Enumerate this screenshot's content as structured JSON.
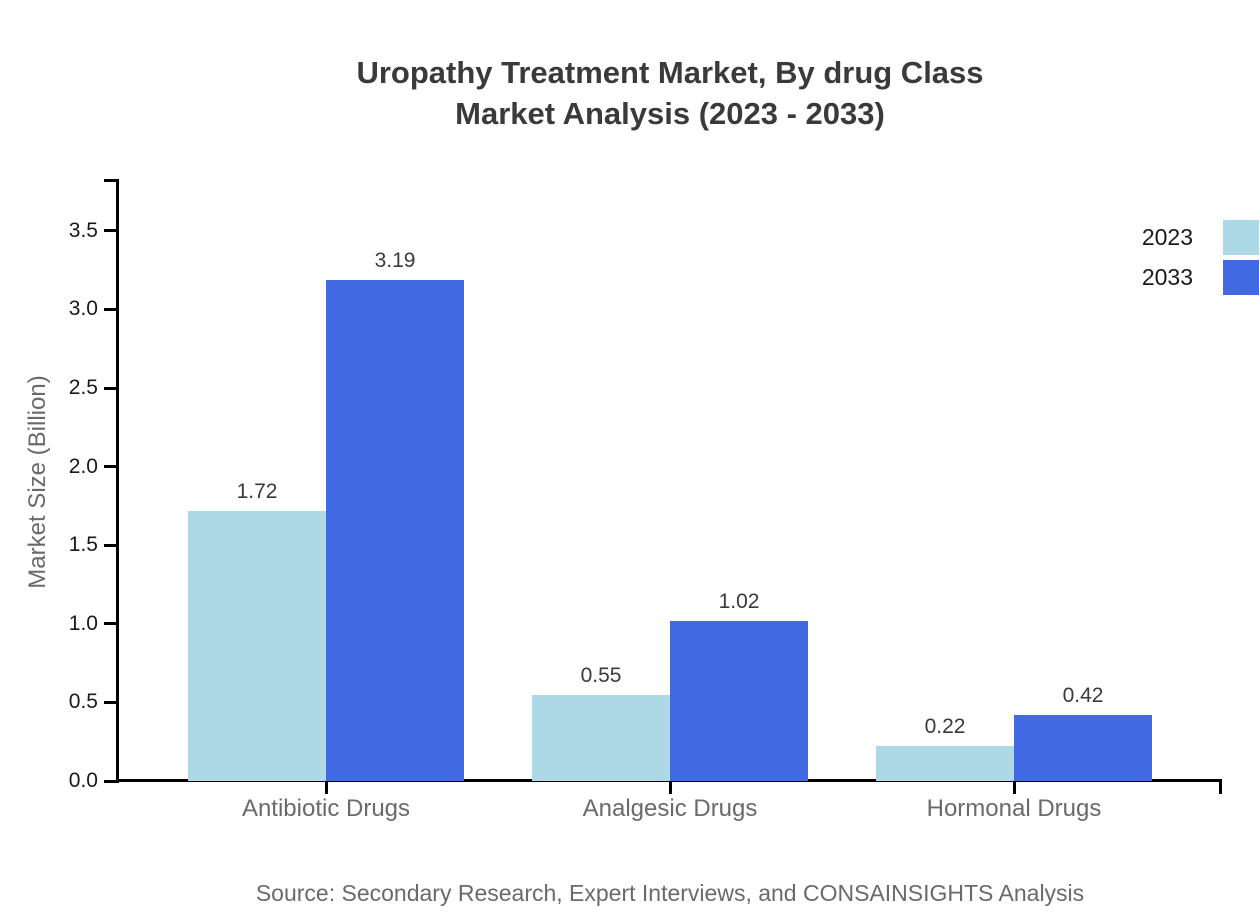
{
  "title": {
    "line1": "Uropathy Treatment Market, By drug Class",
    "line2": "Market Analysis (2023 - 2033)"
  },
  "chart_data": {
    "type": "bar",
    "categories": [
      "Antibiotic Drugs",
      "Analgesic Drugs",
      "Hormonal Drugs"
    ],
    "series": [
      {
        "name": "2023",
        "color": "#ADD8E6",
        "values": [
          1.72,
          0.55,
          0.22
        ]
      },
      {
        "name": "2033",
        "color": "#4169E1",
        "values": [
          3.19,
          1.02,
          0.42
        ]
      }
    ],
    "value_labels": [
      "1.72",
      "3.19",
      "0.55",
      "1.02",
      "0.22",
      "0.42"
    ],
    "xlabel": "",
    "ylabel": "Market Size (Billion)",
    "ylim": [
      0,
      3.5
    ],
    "yticks": [
      "0.0",
      "0.5",
      "1.0",
      "1.5",
      "2.0",
      "2.5",
      "3.0",
      "3.5"
    ],
    "grid": false,
    "legend_position": "upper-right-outside",
    "bar_value_labels_shown": true
  },
  "legend": {
    "items": [
      {
        "label": "2023",
        "color": "#ADD8E6"
      },
      {
        "label": "2033",
        "color": "#4169E1"
      }
    ]
  },
  "source": "Source: Secondary Research, Expert Interviews, and CONSAINSIGHTS Analysis",
  "colors": {
    "series_2023": "#ADD8E6",
    "series_2033": "#4169E1",
    "axis": "#000000",
    "title_text": "#3A3A3A",
    "tick_text": "#1A1A1A",
    "muted_text": "#6A6A6A",
    "background": "#FFFFFF"
  }
}
